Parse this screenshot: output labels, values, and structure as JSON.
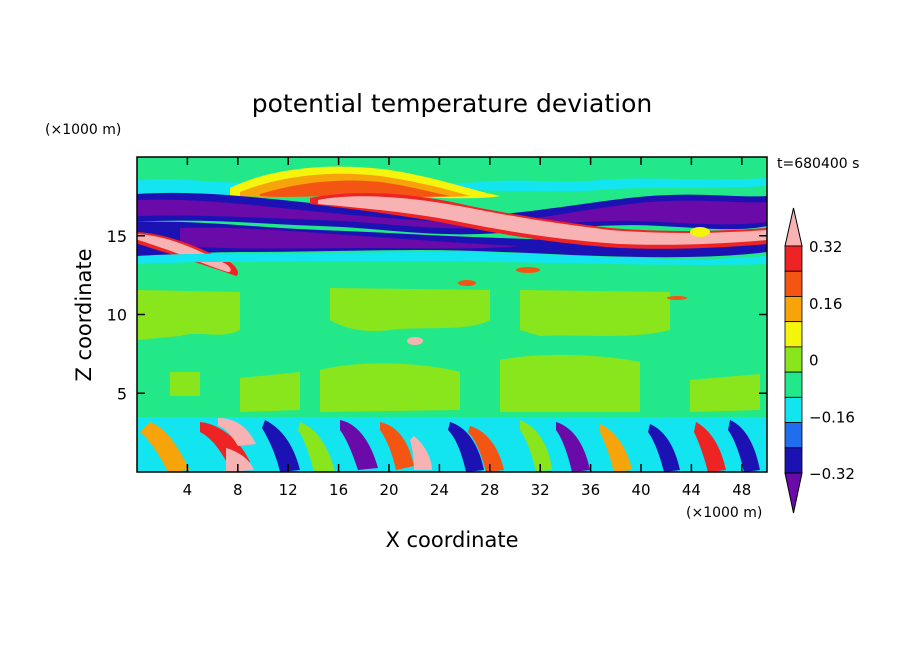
{
  "chart_data": {
    "type": "heatmap",
    "title": "potential temperature deviation",
    "xlabel": "X coordinate",
    "ylabel": "Z coordinate",
    "x_unit": "(×1000 m)",
    "y_unit": "(×1000 m)",
    "time_label": "t=680400 s",
    "xlim": [
      0,
      50
    ],
    "ylim": [
      0,
      20
    ],
    "x_ticks": [
      4,
      8,
      12,
      16,
      20,
      24,
      28,
      32,
      36,
      40,
      44,
      48
    ],
    "y_ticks": [
      5,
      10,
      15
    ],
    "colorbar": {
      "levels": [
        -0.4,
        -0.32,
        -0.24,
        -0.16,
        -0.08,
        0,
        0.08,
        0.16,
        0.24,
        0.32,
        0.4
      ],
      "tick_labels": [
        "0.32",
        "0.16",
        "0",
        "−0.16",
        "−0.32"
      ],
      "tick_values": [
        0.32,
        0.16,
        0,
        -0.16,
        -0.32
      ],
      "colors": [
        "#6a0aa8",
        "#1c12b4",
        "#1f6ef0",
        "#12e4f0",
        "#22e889",
        "#8ae61c",
        "#f4f40c",
        "#f7a30a",
        "#f45512",
        "#ee2424",
        "#f7b3b3"
      ],
      "extend": "both"
    },
    "fields": {
      "background": "#22e889",
      "features": [
        {
          "name": "upper warm band",
          "value": 0.4,
          "x_range": [
            8,
            46
          ],
          "z_range": [
            14.5,
            18
          ]
        },
        {
          "name": "upper cold band",
          "value": -0.4,
          "x_range": [
            0,
            50
          ],
          "z_range": [
            14,
            17.5
          ]
        },
        {
          "name": "boundary layer cells",
          "value_range": [
            -0.4,
            0.4
          ],
          "x_range": [
            0,
            50
          ],
          "z_range": [
            0,
            3.6
          ]
        }
      ]
    }
  }
}
